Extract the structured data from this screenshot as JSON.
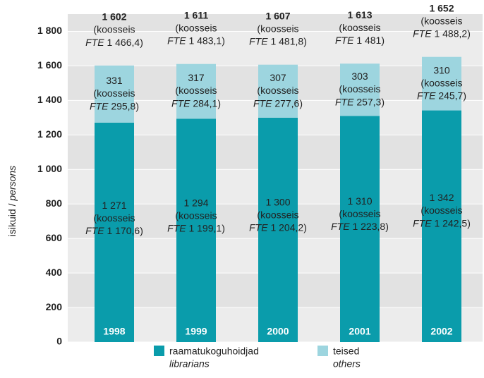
{
  "chart_data": {
    "type": "stacked_bar",
    "categories": [
      "1998",
      "1999",
      "2000",
      "2001",
      "2002"
    ],
    "series": [
      {
        "name": "raamatukoguhoidjad",
        "name_en": "librarians",
        "color": "#0a9cab",
        "values": [
          1271,
          1294,
          1300,
          1310,
          1342
        ],
        "value_labels": [
          "1 271",
          "1 294",
          "1 300",
          "1 310",
          "1 342"
        ],
        "fte": [
          1170.6,
          1199.1,
          1204.2,
          1223.8,
          1242.5
        ],
        "fte_labels": [
          "1 170,6",
          "1 199,1",
          "1 204,2",
          "1 223,8",
          "1 242,5"
        ]
      },
      {
        "name": "teised",
        "name_en": "others",
        "color": "#9dd5df",
        "values": [
          331,
          317,
          307,
          303,
          310
        ],
        "fte": [
          295.8,
          284.1,
          277.6,
          257.3,
          245.7
        ],
        "fte_labels": [
          "295,8",
          "284,1",
          "277,6",
          "257,3",
          "245,7"
        ]
      }
    ],
    "totals": [
      1602,
      1611,
      1607,
      1613,
      1652
    ],
    "total_labels": [
      "1 602",
      "1 611",
      "1 607",
      "1 613",
      "1 652"
    ],
    "total_fte": [
      1466.4,
      1483.1,
      1481.8,
      1481,
      1488.2
    ],
    "total_fte_labels": [
      "1 466,4",
      "1 483,1",
      "1 481,8",
      "1 481",
      "1 488,2"
    ],
    "fte_open": "(koosseis",
    "fte_word": "FTE",
    "fte_close": ")",
    "ylabel": [
      "isikuid / ",
      "persons"
    ],
    "ylim": [
      0,
      1900
    ],
    "yticks": [
      0,
      200,
      400,
      600,
      800,
      {
        "value": 1000,
        "label": "1 000"
      },
      {
        "value": 1200,
        "label": "1 200"
      },
      {
        "value": 1400,
        "label": "1 400"
      },
      {
        "value": 1600,
        "label": "1 600"
      },
      {
        "value": 1800,
        "label": "1 800"
      }
    ],
    "grid": true
  }
}
